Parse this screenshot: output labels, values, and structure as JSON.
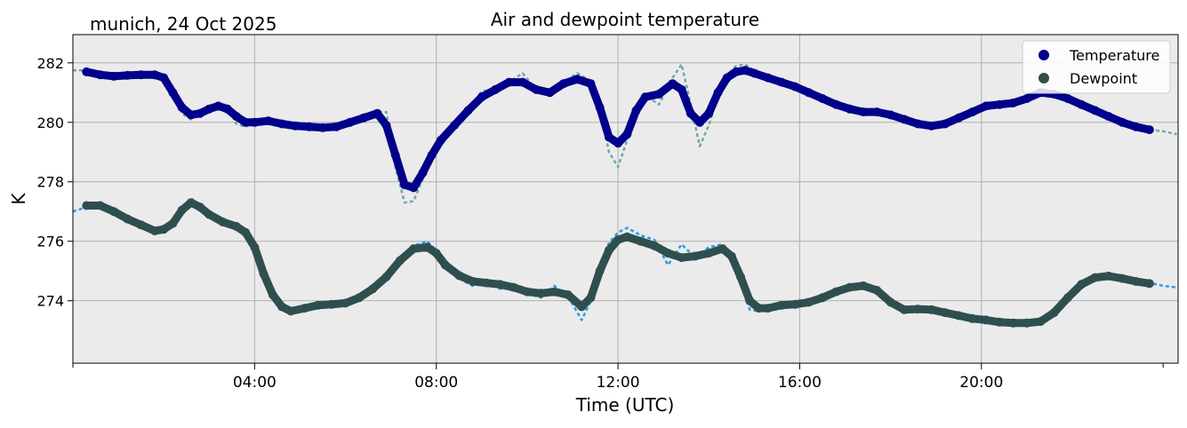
{
  "colors": {
    "temperature": "#00008b",
    "temperature_raw": "#6fa8a8",
    "dewpoint": "#2f4f4f",
    "dewpoint_raw": "#2e9be6",
    "plot_bg": "#ebebeb",
    "grid": "#b0b0b0"
  },
  "chart_data": {
    "type": "line",
    "title": "Air and dewpoint temperature",
    "subtitle": "munich, 24 Oct 2025",
    "xlabel": "Time (UTC)",
    "ylabel": "K",
    "xlim": [
      0,
      24.33
    ],
    "ylim": [
      271.9,
      282.95
    ],
    "grid": true,
    "legend_position": "top-right",
    "x_ticks": [
      {
        "value": 4,
        "label": "04:00"
      },
      {
        "value": 8,
        "label": "08:00"
      },
      {
        "value": 12,
        "label": "12:00"
      },
      {
        "value": 16,
        "label": "16:00"
      },
      {
        "value": 20,
        "label": "20:00"
      }
    ],
    "x_minor_ticks": [
      0,
      24
    ],
    "y_ticks": [
      {
        "value": 274,
        "label": "274"
      },
      {
        "value": 276,
        "label": "276"
      },
      {
        "value": 278,
        "label": "278"
      },
      {
        "value": 280,
        "label": "280"
      },
      {
        "value": 282,
        "label": "282"
      }
    ],
    "series": [
      {
        "name": "Temperature",
        "raw_name": "Temperature (raw)",
        "x": [
          0.3,
          0.6,
          0.9,
          1.2,
          1.5,
          1.8,
          2.0,
          2.2,
          2.4,
          2.6,
          2.8,
          3.0,
          3.2,
          3.4,
          3.6,
          3.8,
          4.0,
          4.3,
          4.6,
          4.9,
          5.2,
          5.5,
          5.8,
          6.1,
          6.4,
          6.7,
          6.9,
          7.1,
          7.3,
          7.5,
          7.7,
          7.9,
          8.1,
          8.4,
          8.7,
          9.0,
          9.3,
          9.6,
          9.9,
          10.2,
          10.5,
          10.8,
          11.1,
          11.4,
          11.6,
          11.8,
          12.0,
          12.2,
          12.4,
          12.6,
          12.9,
          13.2,
          13.4,
          13.6,
          13.8,
          14.0,
          14.2,
          14.4,
          14.6,
          14.8,
          15.0,
          15.3,
          15.6,
          15.9,
          16.2,
          16.5,
          16.8,
          17.1,
          17.4,
          17.7,
          18.0,
          18.3,
          18.6,
          18.9,
          19.2,
          19.5,
          19.8,
          20.1,
          20.4,
          20.7,
          21.0,
          21.3,
          21.6,
          21.9,
          22.2,
          22.5,
          22.8,
          23.1,
          23.4,
          23.7
        ],
        "values": [
          281.7,
          281.6,
          281.55,
          281.58,
          281.6,
          281.6,
          281.5,
          281.0,
          280.5,
          280.25,
          280.3,
          280.45,
          280.55,
          280.45,
          280.2,
          280.0,
          280.0,
          280.05,
          279.95,
          279.88,
          279.85,
          279.82,
          279.85,
          280.0,
          280.15,
          280.3,
          279.9,
          278.9,
          277.9,
          277.8,
          278.3,
          278.9,
          279.4,
          279.9,
          280.4,
          280.85,
          281.1,
          281.35,
          281.35,
          281.1,
          281.0,
          281.3,
          281.45,
          281.3,
          280.5,
          279.5,
          279.3,
          279.6,
          280.4,
          280.85,
          280.95,
          281.3,
          281.1,
          280.3,
          280.0,
          280.3,
          281.0,
          281.5,
          281.7,
          281.75,
          281.65,
          281.5,
          281.35,
          281.2,
          281.0,
          280.8,
          280.6,
          280.45,
          280.35,
          280.35,
          280.25,
          280.1,
          279.95,
          279.88,
          279.95,
          280.15,
          280.35,
          280.55,
          280.6,
          280.65,
          280.8,
          281.0,
          280.95,
          280.8,
          280.6,
          280.4,
          280.2,
          280.0,
          279.85,
          279.75
        ],
        "raw_x": [
          0,
          0.3,
          0.6,
          0.9,
          1.2,
          1.5,
          1.8,
          2.0,
          2.2,
          2.4,
          2.6,
          2.8,
          3.0,
          3.2,
          3.4,
          3.6,
          3.8,
          4.0,
          4.3,
          4.6,
          4.9,
          5.2,
          5.5,
          5.8,
          6.1,
          6.4,
          6.7,
          6.9,
          7.1,
          7.3,
          7.5,
          7.7,
          7.9,
          8.1,
          8.4,
          8.7,
          9.0,
          9.3,
          9.6,
          9.9,
          10.2,
          10.5,
          10.8,
          11.1,
          11.4,
          11.6,
          11.8,
          12.0,
          12.2,
          12.4,
          12.6,
          12.9,
          13.2,
          13.4,
          13.6,
          13.8,
          14.0,
          14.2,
          14.4,
          14.6,
          14.8,
          15.0,
          15.3,
          15.6,
          15.9,
          16.2,
          16.5,
          16.8,
          17.1,
          17.4,
          17.7,
          18.0,
          18.3,
          18.6,
          18.9,
          19.2,
          19.5,
          19.8,
          20.1,
          20.4,
          20.7,
          21.0,
          21.3,
          21.6,
          21.9,
          22.2,
          22.5,
          22.8,
          23.1,
          23.4,
          23.7,
          24.0,
          24.3
        ],
        "raw_values": [
          281.75,
          281.75,
          281.6,
          281.55,
          281.6,
          281.6,
          281.65,
          281.6,
          281.2,
          280.3,
          280.1,
          280.35,
          280.5,
          280.6,
          280.6,
          279.95,
          279.85,
          280.0,
          280.05,
          279.95,
          279.88,
          279.85,
          279.82,
          279.85,
          280.0,
          280.2,
          280.35,
          280.35,
          278.5,
          277.3,
          277.35,
          278.1,
          278.9,
          279.4,
          279.95,
          280.4,
          281.05,
          281.1,
          281.35,
          281.65,
          281.1,
          281.0,
          281.35,
          281.65,
          281.4,
          280.6,
          279.0,
          278.5,
          279.4,
          280.4,
          280.9,
          280.6,
          281.5,
          281.95,
          280.6,
          279.2,
          279.9,
          280.9,
          281.6,
          281.9,
          281.95,
          281.75,
          281.5,
          281.35,
          281.2,
          281.0,
          280.8,
          280.6,
          280.45,
          280.35,
          280.35,
          280.25,
          280.1,
          279.95,
          279.88,
          279.95,
          280.15,
          280.35,
          280.6,
          280.6,
          280.65,
          280.8,
          281.0,
          280.95,
          280.8,
          280.6,
          280.4,
          280.2,
          280.0,
          279.85,
          279.75,
          279.7,
          279.6
        ]
      },
      {
        "name": "Dewpoint",
        "raw_name": "Dewpoint (raw)",
        "x": [
          0.3,
          0.6,
          0.9,
          1.2,
          1.5,
          1.8,
          2.0,
          2.2,
          2.4,
          2.6,
          2.8,
          3.0,
          3.3,
          3.6,
          3.8,
          4.0,
          4.2,
          4.4,
          4.6,
          4.8,
          5.1,
          5.4,
          5.7,
          6.0,
          6.3,
          6.6,
          6.9,
          7.2,
          7.5,
          7.8,
          8.0,
          8.2,
          8.5,
          8.8,
          9.1,
          9.4,
          9.7,
          10.0,
          10.3,
          10.6,
          10.9,
          11.2,
          11.4,
          11.6,
          11.8,
          12.0,
          12.2,
          12.5,
          12.8,
          13.1,
          13.4,
          13.7,
          14.0,
          14.3,
          14.5,
          14.7,
          14.9,
          15.1,
          15.3,
          15.6,
          15.9,
          16.2,
          16.5,
          16.8,
          17.1,
          17.4,
          17.7,
          18.0,
          18.3,
          18.6,
          18.9,
          19.2,
          19.5,
          19.8,
          20.1,
          20.4,
          20.7,
          21.0,
          21.3,
          21.6,
          21.9,
          22.2,
          22.5,
          22.8,
          23.1,
          23.4,
          23.7
        ],
        "values": [
          277.2,
          277.2,
          277.0,
          276.75,
          276.55,
          276.35,
          276.4,
          276.6,
          277.05,
          277.3,
          277.15,
          276.9,
          276.65,
          276.5,
          276.3,
          275.8,
          274.9,
          274.2,
          273.8,
          273.65,
          273.75,
          273.85,
          273.88,
          273.92,
          274.1,
          274.4,
          274.8,
          275.35,
          275.75,
          275.8,
          275.6,
          275.2,
          274.85,
          274.65,
          274.6,
          274.55,
          274.45,
          274.3,
          274.25,
          274.3,
          274.2,
          273.8,
          274.1,
          275.0,
          275.7,
          276.05,
          276.15,
          276.0,
          275.85,
          275.6,
          275.45,
          275.5,
          275.6,
          275.75,
          275.5,
          274.8,
          274.0,
          273.75,
          273.75,
          273.85,
          273.88,
          273.95,
          274.1,
          274.3,
          274.45,
          274.5,
          274.35,
          273.95,
          273.7,
          273.72,
          273.7,
          273.6,
          273.5,
          273.4,
          273.35,
          273.28,
          273.25,
          273.25,
          273.3,
          273.6,
          274.1,
          274.55,
          274.78,
          274.83,
          274.75,
          274.65,
          274.58
        ],
        "raw_x": [
          0,
          0.3,
          0.6,
          0.9,
          1.2,
          1.5,
          1.8,
          2.0,
          2.2,
          2.4,
          2.6,
          2.8,
          3.0,
          3.3,
          3.6,
          3.8,
          4.0,
          4.2,
          4.4,
          4.6,
          4.8,
          5.1,
          5.4,
          5.7,
          6.0,
          6.3,
          6.6,
          6.9,
          7.2,
          7.5,
          7.8,
          8.0,
          8.2,
          8.5,
          8.8,
          9.1,
          9.4,
          9.7,
          10.0,
          10.3,
          10.6,
          10.9,
          11.2,
          11.4,
          11.6,
          11.8,
          12.0,
          12.2,
          12.5,
          12.8,
          13.1,
          13.4,
          13.7,
          14.0,
          14.3,
          14.5,
          14.7,
          14.9,
          15.1,
          15.3,
          15.6,
          15.9,
          16.2,
          16.5,
          16.8,
          17.1,
          17.4,
          17.7,
          18.0,
          18.3,
          18.6,
          18.9,
          19.2,
          19.5,
          19.8,
          20.1,
          20.4,
          20.7,
          21.0,
          21.3,
          21.6,
          21.9,
          22.2,
          22.5,
          22.8,
          23.1,
          23.4,
          23.7,
          24.0,
          24.3
        ],
        "raw_values": [
          277.0,
          277.15,
          277.25,
          277.0,
          276.75,
          276.5,
          276.25,
          276.35,
          276.75,
          277.15,
          277.45,
          277.15,
          276.85,
          276.6,
          276.55,
          276.25,
          275.75,
          274.85,
          274.15,
          273.7,
          273.55,
          273.75,
          273.9,
          273.85,
          273.95,
          274.1,
          274.45,
          274.85,
          275.4,
          275.85,
          276.0,
          275.7,
          275.1,
          274.75,
          274.5,
          274.65,
          274.4,
          274.5,
          274.25,
          274.1,
          274.5,
          274.15,
          273.35,
          274.0,
          275.1,
          275.95,
          276.3,
          276.45,
          276.2,
          276.05,
          275.2,
          275.9,
          275.45,
          275.8,
          275.9,
          275.55,
          274.85,
          273.7,
          273.65,
          273.8,
          273.85,
          273.9,
          274.0,
          274.15,
          274.3,
          274.45,
          274.55,
          274.3,
          273.85,
          273.6,
          273.8,
          273.65,
          273.6,
          273.45,
          273.4,
          273.3,
          273.25,
          273.2,
          273.15,
          273.35,
          273.65,
          274.2,
          274.65,
          274.85,
          274.85,
          274.75,
          274.65,
          274.6,
          274.5,
          274.45
        ]
      }
    ]
  }
}
